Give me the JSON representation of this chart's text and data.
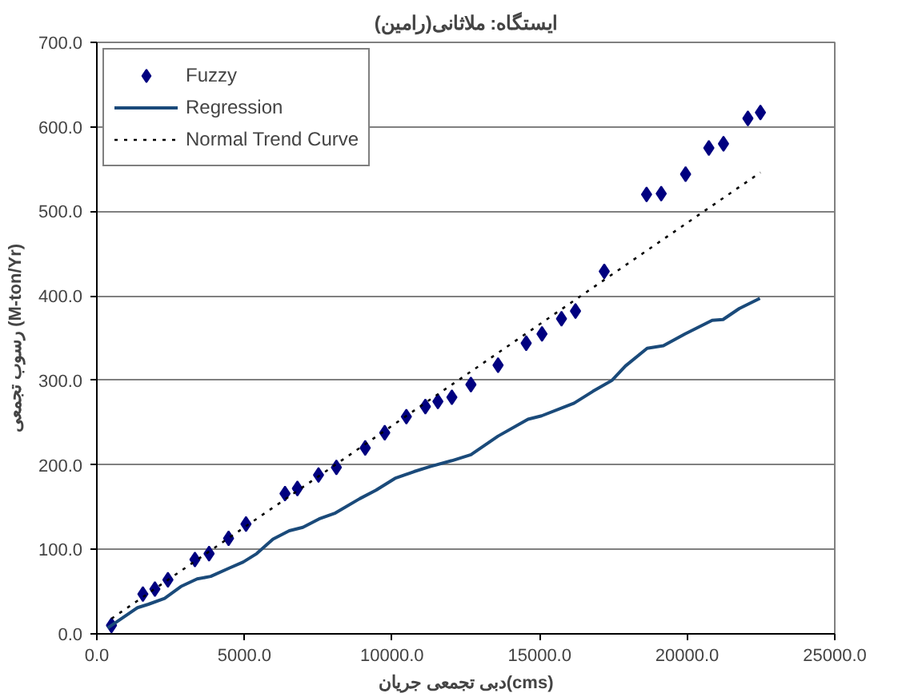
{
  "chart_data": {
    "type": "scatter",
    "title": "ایستگاه: ملاثانی(رامین)",
    "xlabel": "دبی تجمعی جریان(cms)",
    "ylabel": "رسوب تجمعی (M-ton/Yr)",
    "xlim": [
      0,
      25000
    ],
    "ylim": [
      0,
      700
    ],
    "xticks": [
      {
        "value": 0,
        "label": "0.0"
      },
      {
        "value": 5000,
        "label": "5000.0"
      },
      {
        "value": 10000,
        "label": "10000.0"
      },
      {
        "value": 15000,
        "label": "15000.0"
      },
      {
        "value": 20000,
        "label": "20000.0"
      },
      {
        "value": 25000,
        "label": "25000.0"
      }
    ],
    "yticks": [
      {
        "value": 0,
        "label": "0.0"
      },
      {
        "value": 100,
        "label": "100.0"
      },
      {
        "value": 200,
        "label": "200.0"
      },
      {
        "value": 300,
        "label": "300.0"
      },
      {
        "value": 400,
        "label": "400.0"
      },
      {
        "value": 500,
        "label": "500.0"
      },
      {
        "value": 600,
        "label": "600.0"
      },
      {
        "value": 700,
        "label": "700.0"
      }
    ],
    "grid": "y",
    "legend": "top left",
    "series": [
      {
        "name": "Fuzzy",
        "marker": "diamond",
        "color": "#000080",
        "x": [
          496,
          1560,
          1967,
          2408,
          3323,
          3802,
          4463,
          5053,
          6375,
          6794,
          7510,
          8116,
          9092,
          9753,
          10486,
          11130,
          11554,
          12028,
          12673,
          13593,
          14546,
          15081,
          15742,
          16216,
          17191,
          18624,
          19120,
          19946,
          20734,
          21230,
          22057,
          22481
        ],
        "values": [
          10,
          47,
          53,
          64,
          88,
          95,
          113,
          130,
          166,
          172,
          188,
          197,
          220,
          238,
          257,
          269,
          275,
          280,
          295,
          318,
          344,
          355,
          373,
          382,
          429,
          520,
          521,
          544,
          575,
          580,
          610,
          617
        ]
      },
      {
        "name": "Regression",
        "type": "line",
        "line_style": "solid",
        "color": "#1a4a7a",
        "x": [
          369,
          1378,
          1745,
          2296,
          2847,
          3398,
          3857,
          4500,
          4959,
          5417,
          5968,
          6519,
          6979,
          7530,
          8081,
          8907,
          9458,
          10102,
          10745,
          11296,
          12028,
          12673,
          13593,
          14608,
          15067,
          16169,
          16806,
          17451,
          17908,
          18643,
          19194,
          19928,
          20847,
          21214,
          21765,
          22464
        ],
        "values": [
          7,
          31,
          35,
          42,
          56,
          65,
          68,
          78,
          85,
          95,
          112,
          122,
          126,
          136,
          143,
          160,
          170,
          184,
          192,
          198,
          205,
          212,
          234,
          254,
          258,
          273,
          287,
          300,
          317,
          338,
          341,
          355,
          371,
          372,
          385,
          397
        ]
      },
      {
        "name": "Normal Trend Curve",
        "type": "line",
        "line_style": "dotted",
        "color": "#000000",
        "x": [
          496,
          22481
        ],
        "values": [
          18,
          546
        ]
      }
    ]
  }
}
